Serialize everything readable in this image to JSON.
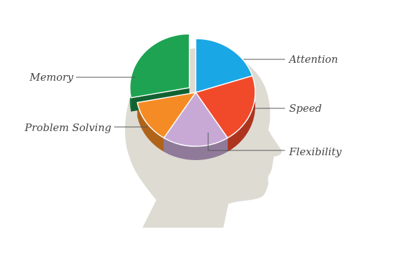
{
  "chart_data": {
    "type": "pie",
    "title": "",
    "slices": [
      {
        "label": "Attention",
        "value": 20,
        "color": "#1aa7e6"
      },
      {
        "label": "Speed",
        "value": 21,
        "color": "#f04a2b"
      },
      {
        "label": "Flexibility",
        "value": 18,
        "color": "#c8a9d6"
      },
      {
        "label": "Problem Solving",
        "value": 13,
        "color": "#f58b24"
      },
      {
        "label": "Memory",
        "value": 28,
        "color": "#1ea352",
        "exploded": true
      }
    ],
    "style": "3d-exploded",
    "legend": "none",
    "background_figure": "head-silhouette",
    "head_color": "#dedbd3"
  }
}
